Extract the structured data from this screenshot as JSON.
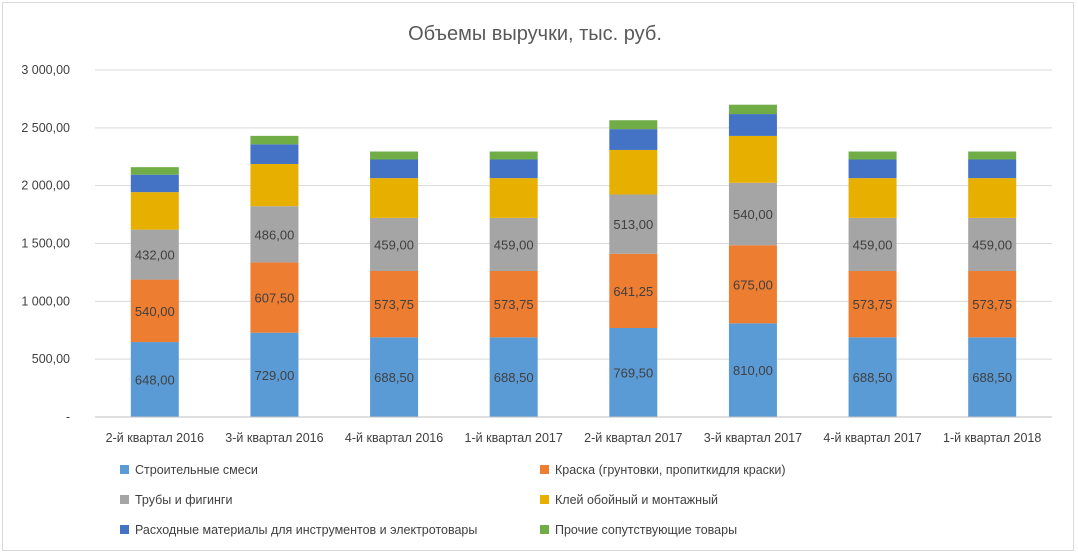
{
  "chart_data": {
    "type": "bar",
    "stacked": true,
    "title": "Объемы выручки, тыс. руб.",
    "xlabel": "",
    "ylabel": "",
    "ylim": [
      0,
      3000
    ],
    "yticks": [
      0,
      500,
      1000,
      1500,
      2000,
      2500,
      3000
    ],
    "ytick_labels": [
      "-",
      "500,00",
      "1 000,00",
      "1 500,00",
      "2 000,00",
      "2 500,00",
      "3 000,00"
    ],
    "grid": true,
    "legend_position": "bottom",
    "categories": [
      "2-й квартал 2016",
      "3-й квартал 2016",
      "4-й квартал 2016",
      "1-й квартал 2017",
      "2-й квартал 2017",
      "3-й квартал 2017",
      "4-й квартал 2017",
      "1-й квартал 2018"
    ],
    "series": [
      {
        "name": "Строительные смеси",
        "color": "#5b9bd5",
        "values": [
          648.0,
          729.0,
          688.5,
          688.5,
          769.5,
          810.0,
          688.5,
          688.5
        ],
        "labels": [
          "648,00",
          "729,00",
          "688,50",
          "688,50",
          "769,50",
          "810,00",
          "688,50",
          "688,50"
        ]
      },
      {
        "name": "Краска (грунтовки, пропиткидля краски)",
        "color": "#ed7d31",
        "values": [
          540.0,
          607.5,
          573.75,
          573.75,
          641.25,
          675.0,
          573.75,
          573.75
        ],
        "labels": [
          "540,00",
          "607,50",
          "573,75",
          "573,75",
          "641,25",
          "675,00",
          "573,75",
          "573,75"
        ]
      },
      {
        "name": "Трубы и фигинги",
        "color": "#a5a5a5",
        "values": [
          432.0,
          486.0,
          459.0,
          459.0,
          513.0,
          540.0,
          459.0,
          459.0
        ],
        "labels": [
          "432,00",
          "486,00",
          "459,00",
          "459,00",
          "513,00",
          "540,00",
          "459,00",
          "459,00"
        ]
      },
      {
        "name": "Клей обойный и монтажный",
        "color": "#e7b000",
        "values": [
          324,
          365,
          344,
          344,
          385,
          405,
          344,
          344
        ]
      },
      {
        "name": "Расходные материалы для инструментов и электротовары",
        "color": "#4472c4",
        "values": [
          151,
          170,
          161,
          161,
          180,
          189,
          161,
          161
        ]
      },
      {
        "name": "Прочие сопутствующие товары",
        "color": "#70ad47",
        "values": [
          65,
          73,
          69,
          69,
          77,
          81,
          69,
          69
        ]
      }
    ]
  }
}
